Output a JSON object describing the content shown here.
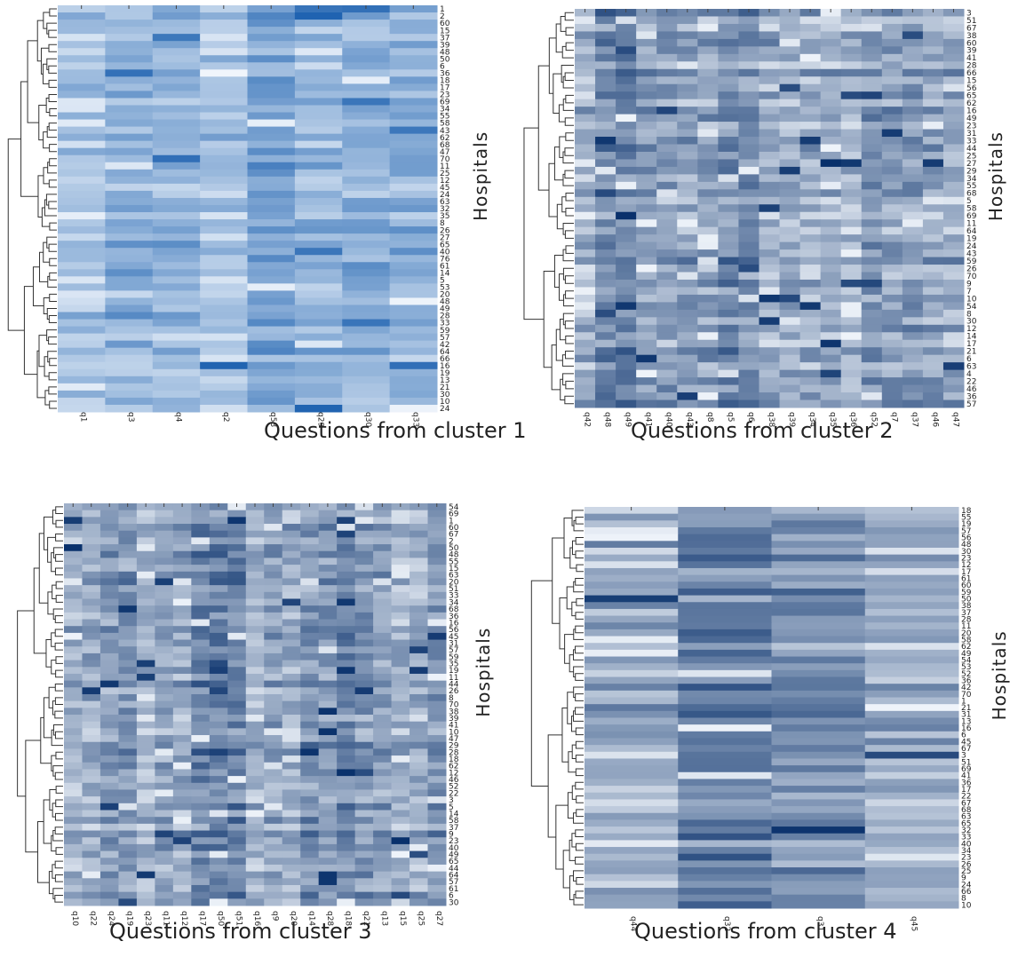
{
  "chart_data": [
    {
      "type": "heatmap",
      "xlabel": "Questions from cluster 1",
      "ylabel": "Hospitals",
      "columns": [
        "q1",
        "q3",
        "q4",
        "q2",
        "q53",
        "q29",
        "q30",
        "q33"
      ],
      "rows": [
        "1",
        "2",
        "60",
        "15",
        "37",
        "39",
        "48",
        "50",
        "6",
        "36",
        "18",
        "17",
        "23",
        "69",
        "34",
        "55",
        "58",
        "43",
        "62",
        "68",
        "47",
        "70",
        "11",
        "25",
        "12",
        "45",
        "24",
        "63",
        "32",
        "35",
        "8",
        "26",
        "27",
        "65",
        "40",
        "76",
        "61",
        "14",
        "5",
        "53",
        "20",
        "48",
        "49",
        "28",
        "33",
        "59",
        "57",
        "42",
        "64",
        "66",
        "16",
        "19",
        "13",
        "21",
        "30",
        "10",
        "24"
      ],
      "color_scale": [
        "#f4f8fd",
        "#1e62b0"
      ]
    },
    {
      "type": "heatmap",
      "xlabel": "Questions from cluster 2",
      "ylabel": "Hospitals",
      "columns": [
        "q42",
        "q48",
        "q49",
        "q41",
        "q40",
        "q43",
        "q8",
        "q5",
        "q6",
        "q38",
        "q39",
        "q34",
        "q35",
        "q36",
        "q52",
        "q7",
        "q37",
        "q46",
        "q47"
      ],
      "rows": [
        "3",
        "51",
        "67",
        "38",
        "60",
        "39",
        "41",
        "28",
        "66",
        "15",
        "56",
        "65",
        "62",
        "16",
        "49",
        "23",
        "31",
        "33",
        "44",
        "25",
        "27",
        "29",
        "34",
        "55",
        "68",
        "5",
        "58",
        "69",
        "11",
        "64",
        "19",
        "24",
        "43",
        "59",
        "26",
        "70",
        "9",
        "7",
        "10",
        "54",
        "8",
        "30",
        "12",
        "14",
        "17",
        "21",
        "6",
        "63",
        "4",
        "22",
        "46",
        "36",
        "57"
      ],
      "color_scale": [
        "#f4f8fd",
        "#08306b"
      ]
    },
    {
      "type": "heatmap",
      "xlabel": "Questions from cluster 3",
      "ylabel": "Hospitals",
      "columns": [
        "q10",
        "q22",
        "q24",
        "q19",
        "q23",
        "q11",
        "q12",
        "q17",
        "q50",
        "q51",
        "q16",
        "q9",
        "q20",
        "q14",
        "q28",
        "q18",
        "q21",
        "q13",
        "q15",
        "q25",
        "q27"
      ],
      "rows": [
        "54",
        "69",
        "1",
        "60",
        "67",
        "2",
        "50",
        "48",
        "55",
        "15",
        "63",
        "20",
        "51",
        "33",
        "34",
        "68",
        "36",
        "16",
        "56",
        "45",
        "31",
        "57",
        "59",
        "35",
        "19",
        "11",
        "44",
        "26",
        "8",
        "70",
        "38",
        "39",
        "41",
        "10",
        "47",
        "29",
        "28",
        "18",
        "62",
        "12",
        "46",
        "52",
        "22",
        "3",
        "5",
        "14",
        "58",
        "37",
        "9",
        "23",
        "40",
        "49",
        "65",
        "44",
        "64",
        "57",
        "61",
        "6",
        "30"
      ],
      "color_scale": [
        "#f4f8fd",
        "#08306b"
      ]
    },
    {
      "type": "heatmap",
      "xlabel": "Questions from cluster 4",
      "ylabel": "Hospitals",
      "columns": [
        "q44",
        "q32",
        "q31",
        "q45"
      ],
      "rows": [
        "18",
        "55",
        "19",
        "57",
        "56",
        "48",
        "30",
        "23",
        "12",
        "17",
        "61",
        "60",
        "59",
        "50",
        "38",
        "37",
        "28",
        "11",
        "20",
        "58",
        "62",
        "49",
        "54",
        "53",
        "52",
        "36",
        "42",
        "70",
        "1",
        "21",
        "31",
        "13",
        "16",
        "6",
        "45",
        "67",
        "3",
        "51",
        "69",
        "41",
        "36",
        "17",
        "22",
        "67",
        "68",
        "63",
        "65",
        "32",
        "33",
        "40",
        "34",
        "23",
        "26",
        "25",
        "9",
        "24",
        "66",
        "8",
        "10"
      ],
      "color_scale": [
        "#f4f8fd",
        "#08306b"
      ]
    }
  ]
}
